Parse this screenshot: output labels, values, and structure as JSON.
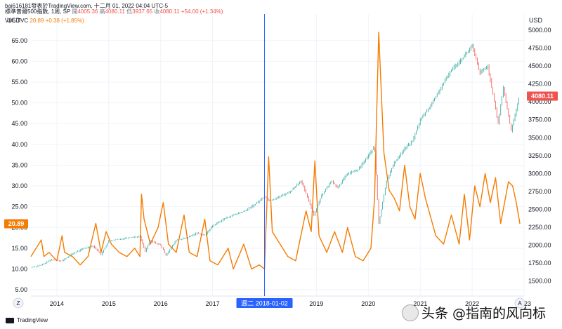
{
  "header": {
    "publisher": "bai616181",
    "publish_text": "發表於TradingView.com,",
    "datetime": "十二月 01, 2022 04:04 UTC-5",
    "main_symbol": "標準普爾500指數, 1周, SP",
    "open_label": "開",
    "open": "4005.36",
    "high_label": "高",
    "high": "4080.11",
    "low_label": "低",
    "low": "3937.65",
    "close_label": "收",
    "close": "4080.11",
    "change": "+54.00 (+1.34%)",
    "vix_symbol": "VIX, TVC",
    "vix_value": "20.89",
    "vix_change": "+0.38 (+1.85%)"
  },
  "footer": {
    "brand": "TradingView",
    "zoom_button": "Z",
    "auto_button": "A",
    "watermark": "头条 @指南的风向标"
  },
  "chart_data": {
    "type": "line",
    "left_axis": {
      "unit": "USD",
      "ticks": [
        5,
        10,
        15,
        20,
        25,
        30,
        35,
        40,
        45,
        50,
        55,
        60,
        65
      ],
      "range": [
        3.5,
        68
      ]
    },
    "right_axis": {
      "unit": "USD",
      "ticks": [
        1500,
        1750,
        2000,
        2250,
        2500,
        2750,
        3000,
        3250,
        3500,
        3750,
        4000,
        4250,
        4500,
        4750,
        5000
      ],
      "range": [
        1290,
        5030
      ]
    },
    "x_ticks": [
      "2014",
      "2015",
      "2016",
      "2017",
      "2018",
      "2019",
      "2020",
      "2021",
      "2022",
      "2023"
    ],
    "x_range": [
      2013.5,
      2023.0
    ],
    "crosshair": {
      "x": 2018.0,
      "label": "週二 2018-01-02"
    },
    "series": [
      {
        "name": "標準普爾500指數",
        "style": "candlestick",
        "axis": "right",
        "points": [
          [
            2013.5,
            1690
          ],
          [
            2013.7,
            1720
          ],
          [
            2013.9,
            1800
          ],
          [
            2014.1,
            1780
          ],
          [
            2014.3,
            1880
          ],
          [
            2014.5,
            1950
          ],
          [
            2014.7,
            1990
          ],
          [
            2014.85,
            1870
          ],
          [
            2015.0,
            2060
          ],
          [
            2015.2,
            2080
          ],
          [
            2015.4,
            2110
          ],
          [
            2015.6,
            2120
          ],
          [
            2015.7,
            1920
          ],
          [
            2015.8,
            2060
          ],
          [
            2016.0,
            2000
          ],
          [
            2016.1,
            1860
          ],
          [
            2016.3,
            2070
          ],
          [
            2016.5,
            2100
          ],
          [
            2016.7,
            2170
          ],
          [
            2016.85,
            2140
          ],
          [
            2017.0,
            2270
          ],
          [
            2017.2,
            2360
          ],
          [
            2017.4,
            2420
          ],
          [
            2017.6,
            2470
          ],
          [
            2017.8,
            2560
          ],
          [
            2018.0,
            2680
          ],
          [
            2018.1,
            2620
          ],
          [
            2018.3,
            2680
          ],
          [
            2018.5,
            2750
          ],
          [
            2018.7,
            2900
          ],
          [
            2018.8,
            2720
          ],
          [
            2018.95,
            2420
          ],
          [
            2019.1,
            2700
          ],
          [
            2019.3,
            2900
          ],
          [
            2019.4,
            2800
          ],
          [
            2019.6,
            3000
          ],
          [
            2019.8,
            3050
          ],
          [
            2020.0,
            3250
          ],
          [
            2020.12,
            3380
          ],
          [
            2020.2,
            2300
          ],
          [
            2020.35,
            2900
          ],
          [
            2020.5,
            3150
          ],
          [
            2020.7,
            3350
          ],
          [
            2020.85,
            3450
          ],
          [
            2021.0,
            3750
          ],
          [
            2021.2,
            3950
          ],
          [
            2021.4,
            4200
          ],
          [
            2021.6,
            4450
          ],
          [
            2021.8,
            4600
          ],
          [
            2022.0,
            4780
          ],
          [
            2022.15,
            4400
          ],
          [
            2022.3,
            4500
          ],
          [
            2022.4,
            4100
          ],
          [
            2022.5,
            3700
          ],
          [
            2022.6,
            4200
          ],
          [
            2022.75,
            3600
          ],
          [
            2022.85,
            3900
          ],
          [
            2022.92,
            4080
          ]
        ],
        "last_value": 4080.11,
        "color_up": "#26a69a",
        "color_down": "#ef5350"
      },
      {
        "name": "VIX",
        "style": "line",
        "axis": "left",
        "color": "#f57c00",
        "points": [
          [
            2013.5,
            13
          ],
          [
            2013.6,
            15
          ],
          [
            2013.7,
            17
          ],
          [
            2013.75,
            13
          ],
          [
            2013.85,
            14
          ],
          [
            2014.0,
            12
          ],
          [
            2014.1,
            18
          ],
          [
            2014.15,
            14
          ],
          [
            2014.3,
            13
          ],
          [
            2014.45,
            11
          ],
          [
            2014.6,
            13
          ],
          [
            2014.75,
            21
          ],
          [
            2014.85,
            14
          ],
          [
            2014.95,
            19
          ],
          [
            2015.05,
            16
          ],
          [
            2015.2,
            14
          ],
          [
            2015.35,
            13
          ],
          [
            2015.5,
            15
          ],
          [
            2015.6,
            13
          ],
          [
            2015.63,
            28
          ],
          [
            2015.68,
            22
          ],
          [
            2015.8,
            16
          ],
          [
            2015.95,
            20
          ],
          [
            2016.05,
            26
          ],
          [
            2016.15,
            16
          ],
          [
            2016.3,
            14
          ],
          [
            2016.45,
            23
          ],
          [
            2016.55,
            14
          ],
          [
            2016.7,
            13
          ],
          [
            2016.85,
            22
          ],
          [
            2016.95,
            12
          ],
          [
            2017.1,
            11
          ],
          [
            2017.3,
            15
          ],
          [
            2017.4,
            10
          ],
          [
            2017.6,
            16
          ],
          [
            2017.75,
            10
          ],
          [
            2017.9,
            11
          ],
          [
            2018.0,
            10
          ],
          [
            2018.08,
            37
          ],
          [
            2018.15,
            19
          ],
          [
            2018.3,
            16
          ],
          [
            2018.45,
            13
          ],
          [
            2018.6,
            12
          ],
          [
            2018.8,
            24
          ],
          [
            2018.9,
            19
          ],
          [
            2018.97,
            36
          ],
          [
            2019.05,
            18
          ],
          [
            2019.2,
            14
          ],
          [
            2019.35,
            19
          ],
          [
            2019.5,
            14
          ],
          [
            2019.6,
            20
          ],
          [
            2019.75,
            13
          ],
          [
            2019.9,
            12
          ],
          [
            2020.05,
            15
          ],
          [
            2020.12,
            27
          ],
          [
            2020.2,
            67
          ],
          [
            2020.3,
            38
          ],
          [
            2020.4,
            29
          ],
          [
            2020.5,
            27
          ],
          [
            2020.6,
            24
          ],
          [
            2020.7,
            35
          ],
          [
            2020.8,
            25
          ],
          [
            2020.9,
            22
          ],
          [
            2021.0,
            33
          ],
          [
            2021.1,
            27
          ],
          [
            2021.3,
            18
          ],
          [
            2021.45,
            16
          ],
          [
            2021.6,
            23
          ],
          [
            2021.75,
            16
          ],
          [
            2021.85,
            28
          ],
          [
            2021.95,
            17
          ],
          [
            2022.05,
            30
          ],
          [
            2022.15,
            25
          ],
          [
            2022.25,
            33
          ],
          [
            2022.35,
            26
          ],
          [
            2022.45,
            32
          ],
          [
            2022.55,
            21
          ],
          [
            2022.7,
            31
          ],
          [
            2022.78,
            30
          ],
          [
            2022.85,
            26
          ],
          [
            2022.92,
            20.89
          ]
        ],
        "last_value": 20.89
      }
    ]
  }
}
